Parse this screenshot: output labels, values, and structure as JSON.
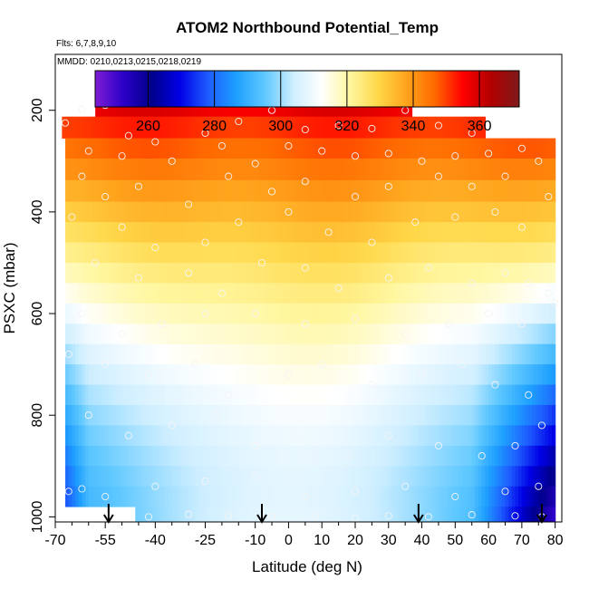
{
  "chart_data": {
    "type": "heatmap",
    "title": "ATOM2 Northbound Potential_Temp",
    "subtitle_flights": "Flts: 6,7,8,9,10",
    "subtitle_dates": "MMDD: 0210,0213,0215,0218,0219",
    "xlabel": "Latitude (deg N)",
    "ylabel": "PSXC (mbar)",
    "xlim": [
      -70,
      82
    ],
    "ylim": [
      1010,
      90
    ],
    "x_tick_values": [
      -70,
      -55,
      -40,
      -25,
      -10,
      0,
      10,
      20,
      30,
      40,
      50,
      60,
      70,
      80
    ],
    "x_tick_labels": [
      "-70",
      "-55",
      "-40",
      "-25",
      "-10",
      "0",
      "10",
      "20",
      "30",
      "40",
      "50",
      "60",
      "70",
      "80"
    ],
    "x_minor_ticks": [
      -65,
      -60,
      -50,
      -45,
      -35,
      -30,
      -20,
      -15,
      -5,
      5,
      15,
      25,
      35,
      45,
      55,
      65,
      75
    ],
    "y_tick_values": [
      200,
      400,
      600,
      800,
      1000
    ],
    "y_tick_labels": [
      "200",
      "400",
      "600",
      "800",
      "1000"
    ],
    "colorbar": {
      "range": [
        244,
        372
      ],
      "ticks": [
        260,
        280,
        300,
        320,
        340,
        360
      ],
      "tick_labels": [
        "260",
        "280",
        "300",
        "320",
        "340",
        "360"
      ],
      "colors": [
        "#7f1dd4",
        "#2b00c8",
        "#00008b",
        "#0000e6",
        "#1e5cff",
        "#1ea0ff",
        "#5fc8ff",
        "#cdeeff",
        "#ffffff",
        "#fff7a0",
        "#ffd84a",
        "#ffa41c",
        "#ff6a00",
        "#ff0000",
        "#b20000",
        "#7e1a1a"
      ]
    },
    "pressure_levels": [
      {
        "p": 190,
        "lat_min": -58,
        "lat_max": 37
      },
      {
        "p": 235,
        "lat_min": -68,
        "lat_max": 59
      },
      {
        "p": 275,
        "lat_min": -67,
        "lat_max": 80
      },
      {
        "p": 315,
        "lat_min": -67,
        "lat_max": 80
      },
      {
        "p": 360,
        "lat_min": -67,
        "lat_max": 80
      },
      {
        "p": 400,
        "lat_min": -67,
        "lat_max": 80
      },
      {
        "p": 440,
        "lat_min": -67,
        "lat_max": 80
      },
      {
        "p": 480,
        "lat_min": -67,
        "lat_max": 80
      },
      {
        "p": 520,
        "lat_min": -67,
        "lat_max": 80
      },
      {
        "p": 560,
        "lat_min": -67,
        "lat_max": 80
      },
      {
        "p": 600,
        "lat_min": -67,
        "lat_max": 80
      },
      {
        "p": 640,
        "lat_min": -67,
        "lat_max": 80
      },
      {
        "p": 680,
        "lat_min": -67,
        "lat_max": 80
      },
      {
        "p": 720,
        "lat_min": -67,
        "lat_max": 80
      },
      {
        "p": 760,
        "lat_min": -67,
        "lat_max": 80
      },
      {
        "p": 800,
        "lat_min": -67,
        "lat_max": 80
      },
      {
        "p": 840,
        "lat_min": -67,
        "lat_max": 80
      },
      {
        "p": 880,
        "lat_min": -67,
        "lat_max": 80
      },
      {
        "p": 920,
        "lat_min": -67,
        "lat_max": 80
      },
      {
        "p": 960,
        "lat_min": -67,
        "lat_max": 80
      },
      {
        "p": 1000,
        "lat_min": -46,
        "lat_max": 80
      }
    ],
    "sample_points": [
      [
        -55,
        190
      ],
      [
        -62,
        198
      ],
      [
        -67,
        225
      ],
      [
        -48,
        250
      ],
      [
        -40,
        262
      ],
      [
        -25,
        245
      ],
      [
        -15,
        222
      ],
      [
        -5,
        200
      ],
      [
        5,
        238
      ],
      [
        15,
        230
      ],
      [
        25,
        236
      ],
      [
        35,
        200
      ],
      [
        45,
        230
      ],
      [
        55,
        245
      ],
      [
        -60,
        280
      ],
      [
        -50,
        290
      ],
      [
        -35,
        300
      ],
      [
        -20,
        270
      ],
      [
        -10,
        305
      ],
      [
        0,
        270
      ],
      [
        10,
        280
      ],
      [
        20,
        290
      ],
      [
        30,
        285
      ],
      [
        40,
        300
      ],
      [
        50,
        290
      ],
      [
        60,
        285
      ],
      [
        70,
        275
      ],
      [
        -62,
        330
      ],
      [
        -55,
        370
      ],
      [
        -45,
        350
      ],
      [
        -30,
        385
      ],
      [
        -18,
        330
      ],
      [
        -5,
        360
      ],
      [
        5,
        340
      ],
      [
        20,
        370
      ],
      [
        30,
        350
      ],
      [
        45,
        330
      ],
      [
        55,
        350
      ],
      [
        65,
        330
      ],
      [
        75,
        300
      ],
      [
        78,
        370
      ],
      [
        -65,
        410
      ],
      [
        -50,
        430
      ],
      [
        -40,
        470
      ],
      [
        -25,
        460
      ],
      [
        -15,
        420
      ],
      [
        0,
        400
      ],
      [
        12,
        440
      ],
      [
        25,
        460
      ],
      [
        38,
        420
      ],
      [
        50,
        410
      ],
      [
        62,
        400
      ],
      [
        70,
        430
      ],
      [
        -58,
        500
      ],
      [
        -45,
        530
      ],
      [
        -30,
        520
      ],
      [
        -20,
        560
      ],
      [
        -8,
        500
      ],
      [
        5,
        510
      ],
      [
        15,
        550
      ],
      [
        30,
        530
      ],
      [
        42,
        510
      ],
      [
        55,
        540
      ],
      [
        65,
        520
      ],
      [
        72,
        540
      ],
      [
        78,
        560
      ],
      [
        -62,
        600
      ],
      [
        -50,
        640
      ],
      [
        -38,
        620
      ],
      [
        -25,
        600
      ],
      [
        -10,
        600
      ],
      [
        5,
        620
      ],
      [
        20,
        610
      ],
      [
        35,
        640
      ],
      [
        48,
        620
      ],
      [
        60,
        600
      ],
      [
        70,
        620
      ],
      [
        80,
        580
      ],
      [
        -66,
        680
      ],
      [
        -55,
        700
      ],
      [
        -42,
        720
      ],
      [
        -28,
        700
      ],
      [
        -18,
        760
      ],
      [
        0,
        720
      ],
      [
        10,
        700
      ],
      [
        25,
        740
      ],
      [
        40,
        720
      ],
      [
        52,
        700
      ],
      [
        62,
        740
      ],
      [
        72,
        760
      ],
      [
        -60,
        800
      ],
      [
        -48,
        840
      ],
      [
        -35,
        820
      ],
      [
        -22,
        800
      ],
      [
        -10,
        860
      ],
      [
        2,
        840
      ],
      [
        18,
        880
      ],
      [
        30,
        840
      ],
      [
        45,
        860
      ],
      [
        58,
        880
      ],
      [
        68,
        860
      ],
      [
        76,
        820
      ],
      [
        -66,
        950
      ],
      [
        -62,
        945
      ],
      [
        -55,
        960
      ],
      [
        -40,
        940
      ],
      [
        -25,
        930
      ],
      [
        -10,
        920
      ],
      [
        5,
        960
      ],
      [
        20,
        950
      ],
      [
        35,
        940
      ],
      [
        50,
        960
      ],
      [
        65,
        950
      ],
      [
        75,
        940
      ],
      [
        -42,
        1000
      ],
      [
        -30,
        995
      ],
      [
        -18,
        998
      ],
      [
        -5,
        1000
      ],
      [
        8,
        997
      ],
      [
        20,
        1002
      ],
      [
        30,
        998
      ],
      [
        42,
        1000
      ],
      [
        55,
        996
      ],
      [
        68,
        998
      ],
      [
        76,
        1000
      ]
    ],
    "arrows_lat": [
      -54,
      -8,
      39,
      76
    ]
  }
}
